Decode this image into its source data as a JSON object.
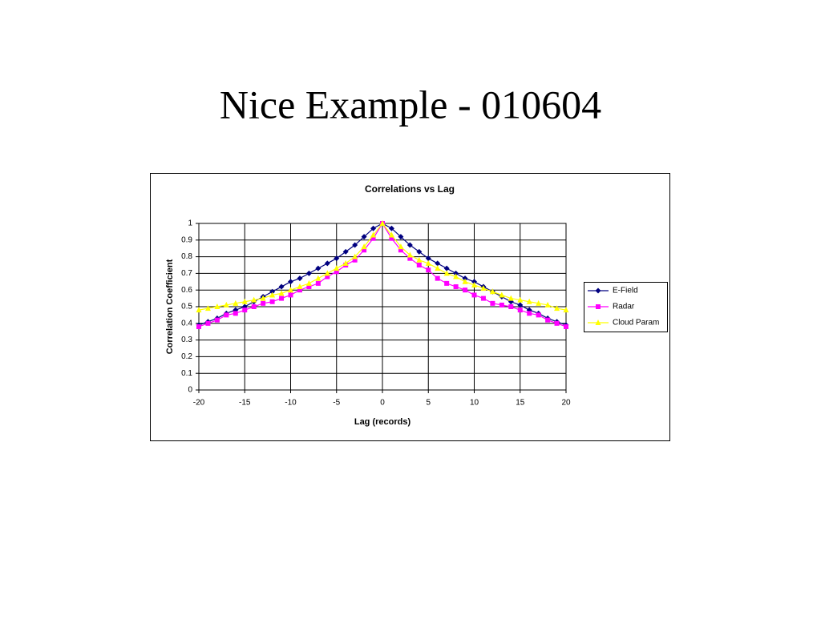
{
  "slide_title": "Nice Example - 010604",
  "chart_data": {
    "type": "line",
    "title": "Correlations vs Lag",
    "x_label": "Lag (records)",
    "y_label": "Correlation Coefficient",
    "x": [
      -20,
      -19,
      -18,
      -17,
      -16,
      -15,
      -14,
      -13,
      -12,
      -11,
      -10,
      -9,
      -8,
      -7,
      -6,
      -5,
      -4,
      -3,
      -2,
      -1,
      0,
      1,
      2,
      3,
      4,
      5,
      6,
      7,
      8,
      9,
      10,
      11,
      12,
      13,
      14,
      15,
      16,
      17,
      18,
      19,
      20
    ],
    "series": [
      {
        "name": "E-Field",
        "color": "#000080",
        "marker": "diamond",
        "values": [
          0.39,
          0.41,
          0.43,
          0.46,
          0.48,
          0.5,
          0.53,
          0.56,
          0.59,
          0.62,
          0.65,
          0.67,
          0.7,
          0.73,
          0.76,
          0.79,
          0.83,
          0.87,
          0.92,
          0.97,
          1.0,
          0.97,
          0.92,
          0.87,
          0.83,
          0.79,
          0.76,
          0.73,
          0.7,
          0.67,
          0.65,
          0.62,
          0.59,
          0.56,
          0.53,
          0.51,
          0.48,
          0.46,
          0.43,
          0.41,
          0.39
        ]
      },
      {
        "name": "Radar",
        "color": "#ff00ff",
        "marker": "square",
        "values": [
          0.38,
          0.4,
          0.42,
          0.45,
          0.46,
          0.48,
          0.5,
          0.52,
          0.53,
          0.55,
          0.57,
          0.6,
          0.62,
          0.64,
          0.68,
          0.71,
          0.75,
          0.78,
          0.84,
          0.91,
          1.0,
          0.91,
          0.84,
          0.79,
          0.75,
          0.72,
          0.67,
          0.64,
          0.62,
          0.6,
          0.57,
          0.55,
          0.52,
          0.51,
          0.5,
          0.48,
          0.46,
          0.45,
          0.42,
          0.4,
          0.38
        ]
      },
      {
        "name": "Cloud Param",
        "color": "#ffff00",
        "marker": "triangle",
        "values": [
          0.48,
          0.49,
          0.5,
          0.51,
          0.52,
          0.53,
          0.54,
          0.55,
          0.57,
          0.58,
          0.6,
          0.62,
          0.64,
          0.67,
          0.7,
          0.73,
          0.76,
          0.8,
          0.86,
          0.93,
          1.0,
          0.93,
          0.86,
          0.81,
          0.78,
          0.76,
          0.73,
          0.7,
          0.68,
          0.65,
          0.63,
          0.61,
          0.59,
          0.57,
          0.55,
          0.54,
          0.53,
          0.52,
          0.51,
          0.49,
          0.48
        ]
      }
    ],
    "xlim": [
      -20,
      20
    ],
    "xticks": [
      -20,
      -15,
      -10,
      -5,
      0,
      5,
      10,
      15,
      20
    ],
    "ylim": [
      0,
      1
    ],
    "yticks": [
      0,
      0.1,
      0.2,
      0.3,
      0.4,
      0.5,
      0.6,
      0.7,
      0.8,
      0.9,
      1
    ],
    "grid": true,
    "legend": "right"
  }
}
